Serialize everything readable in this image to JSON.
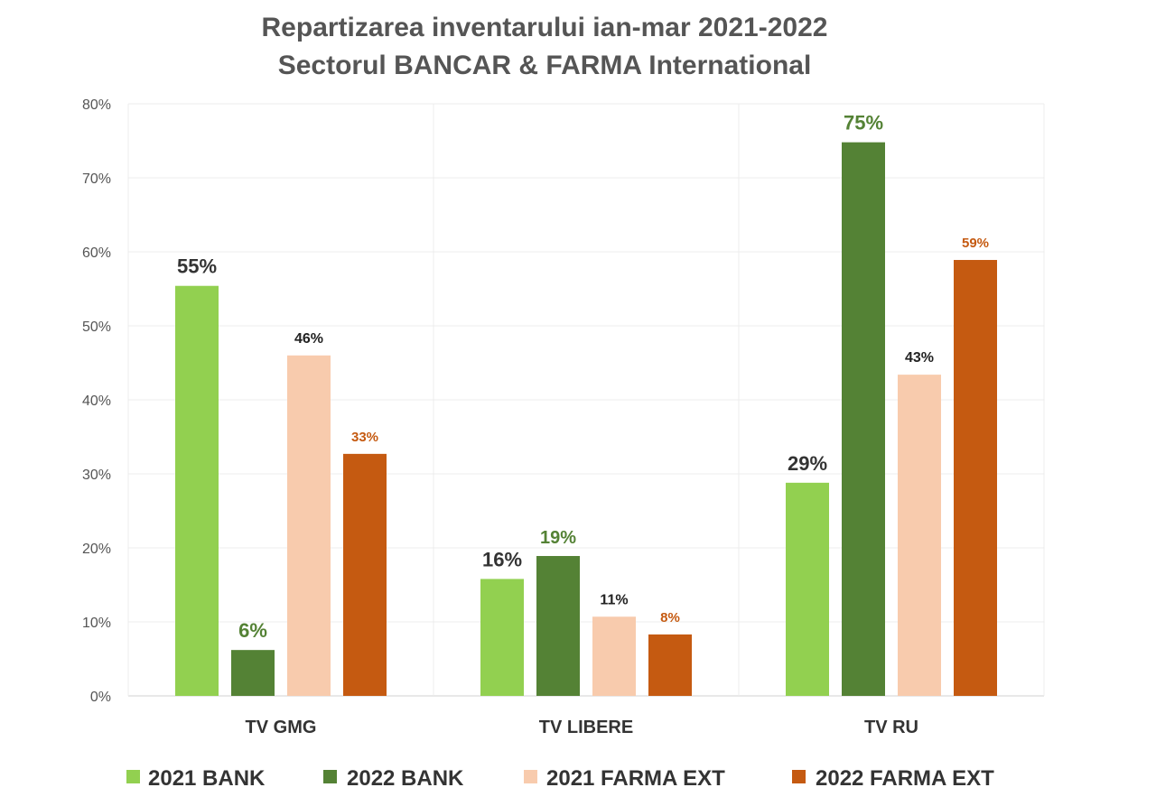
{
  "chart_data": {
    "type": "bar",
    "title_lines": [
      "Repartizarea inventarului ian-mar 2021-2022",
      "Sectorul BANCAR & FARMA International"
    ],
    "categories": [
      "TV GMG",
      "TV LIBERE",
      "TV RU"
    ],
    "ylim": [
      0,
      80
    ],
    "yticks": [
      0,
      10,
      20,
      30,
      40,
      50,
      60,
      70,
      80
    ],
    "ytick_labels": [
      "0%",
      "10%",
      "20%",
      "30%",
      "40%",
      "50%",
      "60%",
      "70%",
      "80%"
    ],
    "grid": true,
    "legend_position": "bottom",
    "series": [
      {
        "name": "2021 BANK",
        "color": "#92d050",
        "label_color": "#333333",
        "values": [
          55.4,
          15.8,
          28.8
        ],
        "labels": [
          "55%",
          "16%",
          "29%"
        ]
      },
      {
        "name": "2022 BANK",
        "color": "#548235",
        "label_color": "#548235",
        "values": [
          6.2,
          18.9,
          74.8
        ],
        "labels": [
          "6%",
          "19%",
          "75%"
        ]
      },
      {
        "name": "2021 FARMA EXT",
        "color": "#f8cbad",
        "label_color": "#222222",
        "values": [
          46.0,
          10.7,
          43.4
        ],
        "labels": [
          "46%",
          "11%",
          "43%"
        ]
      },
      {
        "name": "2022 FARMA EXT",
        "color": "#c55a11",
        "label_color": "#c55a11",
        "values": [
          32.7,
          8.3,
          58.9
        ],
        "labels": [
          "33%",
          "8%",
          "59%"
        ]
      }
    ]
  }
}
